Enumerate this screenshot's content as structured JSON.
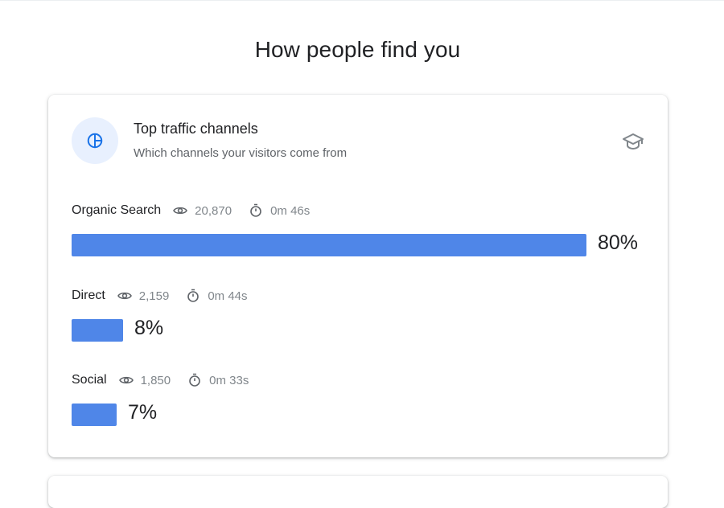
{
  "page": {
    "title": "How people find you"
  },
  "card": {
    "title": "Top traffic channels",
    "subtitle": "Which channels your visitors come from",
    "icon": "pie-chart-icon",
    "action_icon": "school-cap-icon"
  },
  "colors": {
    "bar": "#4f86e8",
    "accent_bg": "#e8f0fe",
    "accent": "#1a73e8"
  },
  "channels": [
    {
      "name": "Organic Search",
      "views": "20,870",
      "duration": "0m 46s",
      "percent_label": "80%",
      "share": 0.8
    },
    {
      "name": "Direct",
      "views": "2,159",
      "duration": "0m 44s",
      "percent_label": "8%",
      "share": 0.08
    },
    {
      "name": "Social",
      "views": "1,850",
      "duration": "0m 33s",
      "percent_label": "7%",
      "share": 0.07
    }
  ]
}
